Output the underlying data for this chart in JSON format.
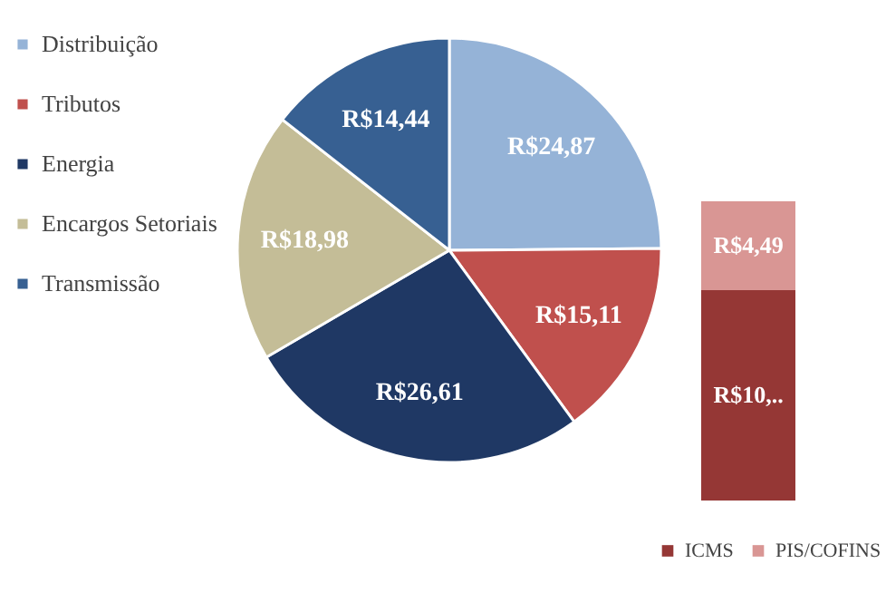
{
  "chart_data": [
    {
      "type": "pie",
      "categories": [
        "Distribuição",
        "Tributos",
        "Energia",
        "Encargos Setoriais",
        "Transmissão"
      ],
      "values": [
        24.87,
        15.11,
        26.61,
        18.98,
        14.44
      ],
      "value_labels": [
        "R$24,87",
        "R$15,11",
        "R$26,61",
        "R$18,98",
        "R$14,44"
      ],
      "colors": [
        "#95b3d7",
        "#c0504d",
        "#1f3864",
        "#c4bd97",
        "#376092"
      ],
      "legend": "left"
    },
    {
      "type": "bar",
      "stacked": true,
      "categories": [
        null
      ],
      "legend": "bottom",
      "series": [
        {
          "name": "ICMS",
          "color": "#953735",
          "values": [
            10.62
          ],
          "value_labels": [
            "R$10,.."
          ]
        },
        {
          "name": "PIS/COFINS",
          "color": "#d99694",
          "values": [
            4.49
          ],
          "value_labels": [
            "R$4,49"
          ]
        }
      ]
    }
  ]
}
